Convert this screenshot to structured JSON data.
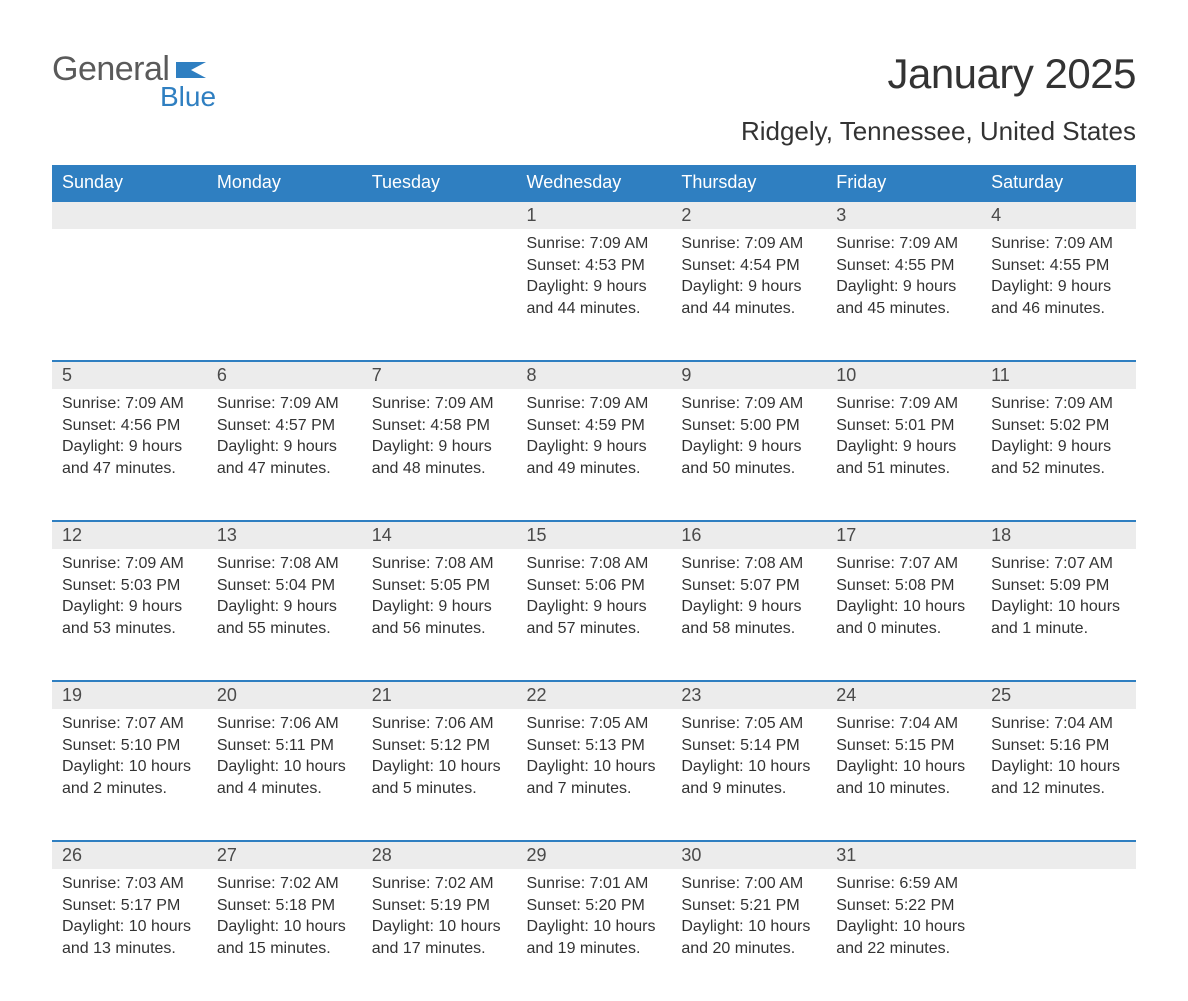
{
  "logo": {
    "text_top": "General",
    "text_bottom": "Blue",
    "flag_color": "#2f7fc1",
    "top_color": "#5a5a5a"
  },
  "title": "January 2025",
  "location": "Ridgely, Tennessee, United States",
  "colors": {
    "header_bg": "#2f7fc1",
    "header_text": "#ffffff",
    "daynum_bg": "#ececec",
    "daynum_border": "#2f7fc1",
    "body_text": "#333333",
    "page_bg": "#ffffff"
  },
  "fonts": {
    "title_pt": 42,
    "location_pt": 26,
    "dayhead_pt": 18,
    "body_pt": 16
  },
  "day_headers": [
    "Sunday",
    "Monday",
    "Tuesday",
    "Wednesday",
    "Thursday",
    "Friday",
    "Saturday"
  ],
  "weeks": [
    [
      null,
      null,
      null,
      {
        "n": "1",
        "sunrise": "Sunrise: 7:09 AM",
        "sunset": "Sunset: 4:53 PM",
        "daylight": "Daylight: 9 hours and 44 minutes."
      },
      {
        "n": "2",
        "sunrise": "Sunrise: 7:09 AM",
        "sunset": "Sunset: 4:54 PM",
        "daylight": "Daylight: 9 hours and 44 minutes."
      },
      {
        "n": "3",
        "sunrise": "Sunrise: 7:09 AM",
        "sunset": "Sunset: 4:55 PM",
        "daylight": "Daylight: 9 hours and 45 minutes."
      },
      {
        "n": "4",
        "sunrise": "Sunrise: 7:09 AM",
        "sunset": "Sunset: 4:55 PM",
        "daylight": "Daylight: 9 hours and 46 minutes."
      }
    ],
    [
      {
        "n": "5",
        "sunrise": "Sunrise: 7:09 AM",
        "sunset": "Sunset: 4:56 PM",
        "daylight": "Daylight: 9 hours and 47 minutes."
      },
      {
        "n": "6",
        "sunrise": "Sunrise: 7:09 AM",
        "sunset": "Sunset: 4:57 PM",
        "daylight": "Daylight: 9 hours and 47 minutes."
      },
      {
        "n": "7",
        "sunrise": "Sunrise: 7:09 AM",
        "sunset": "Sunset: 4:58 PM",
        "daylight": "Daylight: 9 hours and 48 minutes."
      },
      {
        "n": "8",
        "sunrise": "Sunrise: 7:09 AM",
        "sunset": "Sunset: 4:59 PM",
        "daylight": "Daylight: 9 hours and 49 minutes."
      },
      {
        "n": "9",
        "sunrise": "Sunrise: 7:09 AM",
        "sunset": "Sunset: 5:00 PM",
        "daylight": "Daylight: 9 hours and 50 minutes."
      },
      {
        "n": "10",
        "sunrise": "Sunrise: 7:09 AM",
        "sunset": "Sunset: 5:01 PM",
        "daylight": "Daylight: 9 hours and 51 minutes."
      },
      {
        "n": "11",
        "sunrise": "Sunrise: 7:09 AM",
        "sunset": "Sunset: 5:02 PM",
        "daylight": "Daylight: 9 hours and 52 minutes."
      }
    ],
    [
      {
        "n": "12",
        "sunrise": "Sunrise: 7:09 AM",
        "sunset": "Sunset: 5:03 PM",
        "daylight": "Daylight: 9 hours and 53 minutes."
      },
      {
        "n": "13",
        "sunrise": "Sunrise: 7:08 AM",
        "sunset": "Sunset: 5:04 PM",
        "daylight": "Daylight: 9 hours and 55 minutes."
      },
      {
        "n": "14",
        "sunrise": "Sunrise: 7:08 AM",
        "sunset": "Sunset: 5:05 PM",
        "daylight": "Daylight: 9 hours and 56 minutes."
      },
      {
        "n": "15",
        "sunrise": "Sunrise: 7:08 AM",
        "sunset": "Sunset: 5:06 PM",
        "daylight": "Daylight: 9 hours and 57 minutes."
      },
      {
        "n": "16",
        "sunrise": "Sunrise: 7:08 AM",
        "sunset": "Sunset: 5:07 PM",
        "daylight": "Daylight: 9 hours and 58 minutes."
      },
      {
        "n": "17",
        "sunrise": "Sunrise: 7:07 AM",
        "sunset": "Sunset: 5:08 PM",
        "daylight": "Daylight: 10 hours and 0 minutes."
      },
      {
        "n": "18",
        "sunrise": "Sunrise: 7:07 AM",
        "sunset": "Sunset: 5:09 PM",
        "daylight": "Daylight: 10 hours and 1 minute."
      }
    ],
    [
      {
        "n": "19",
        "sunrise": "Sunrise: 7:07 AM",
        "sunset": "Sunset: 5:10 PM",
        "daylight": "Daylight: 10 hours and 2 minutes."
      },
      {
        "n": "20",
        "sunrise": "Sunrise: 7:06 AM",
        "sunset": "Sunset: 5:11 PM",
        "daylight": "Daylight: 10 hours and 4 minutes."
      },
      {
        "n": "21",
        "sunrise": "Sunrise: 7:06 AM",
        "sunset": "Sunset: 5:12 PM",
        "daylight": "Daylight: 10 hours and 5 minutes."
      },
      {
        "n": "22",
        "sunrise": "Sunrise: 7:05 AM",
        "sunset": "Sunset: 5:13 PM",
        "daylight": "Daylight: 10 hours and 7 minutes."
      },
      {
        "n": "23",
        "sunrise": "Sunrise: 7:05 AM",
        "sunset": "Sunset: 5:14 PM",
        "daylight": "Daylight: 10 hours and 9 minutes."
      },
      {
        "n": "24",
        "sunrise": "Sunrise: 7:04 AM",
        "sunset": "Sunset: 5:15 PM",
        "daylight": "Daylight: 10 hours and 10 minutes."
      },
      {
        "n": "25",
        "sunrise": "Sunrise: 7:04 AM",
        "sunset": "Sunset: 5:16 PM",
        "daylight": "Daylight: 10 hours and 12 minutes."
      }
    ],
    [
      {
        "n": "26",
        "sunrise": "Sunrise: 7:03 AM",
        "sunset": "Sunset: 5:17 PM",
        "daylight": "Daylight: 10 hours and 13 minutes."
      },
      {
        "n": "27",
        "sunrise": "Sunrise: 7:02 AM",
        "sunset": "Sunset: 5:18 PM",
        "daylight": "Daylight: 10 hours and 15 minutes."
      },
      {
        "n": "28",
        "sunrise": "Sunrise: 7:02 AM",
        "sunset": "Sunset: 5:19 PM",
        "daylight": "Daylight: 10 hours and 17 minutes."
      },
      {
        "n": "29",
        "sunrise": "Sunrise: 7:01 AM",
        "sunset": "Sunset: 5:20 PM",
        "daylight": "Daylight: 10 hours and 19 minutes."
      },
      {
        "n": "30",
        "sunrise": "Sunrise: 7:00 AM",
        "sunset": "Sunset: 5:21 PM",
        "daylight": "Daylight: 10 hours and 20 minutes."
      },
      {
        "n": "31",
        "sunrise": "Sunrise: 6:59 AM",
        "sunset": "Sunset: 5:22 PM",
        "daylight": "Daylight: 10 hours and 22 minutes."
      },
      null
    ]
  ]
}
